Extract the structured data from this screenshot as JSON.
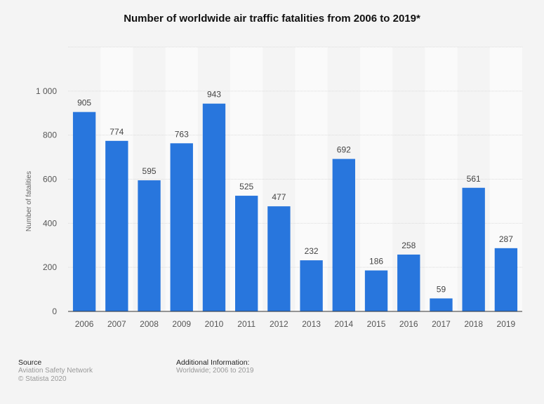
{
  "chart_data": {
    "type": "bar",
    "title": "Number of worldwide air traffic fatalities from 2006 to 2019*",
    "xlabel": "",
    "ylabel": "Number of fatalities",
    "categories": [
      "2006",
      "2007",
      "2008",
      "2009",
      "2010",
      "2011",
      "2012",
      "2013",
      "2014",
      "2015",
      "2016",
      "2017",
      "2018",
      "2019"
    ],
    "values": [
      905,
      774,
      595,
      763,
      943,
      525,
      477,
      232,
      692,
      186,
      258,
      59,
      561,
      287
    ],
    "ylim": [
      0,
      1200
    ],
    "yticks": [
      0,
      200,
      400,
      600,
      800,
      1000,
      1200
    ],
    "ytick_labels": [
      "0",
      "200",
      "400",
      "600",
      "800",
      "1 000",
      ""
    ],
    "grid": true,
    "bar_color": "#2876dd",
    "data_labels": true
  },
  "footer": {
    "source_heading": "Source",
    "source_lines": [
      "Aviation Safety Network",
      "© Statista 2020"
    ],
    "info_heading": "Additional Information:",
    "info_text": "Worldwide; 2006 to 2019"
  }
}
